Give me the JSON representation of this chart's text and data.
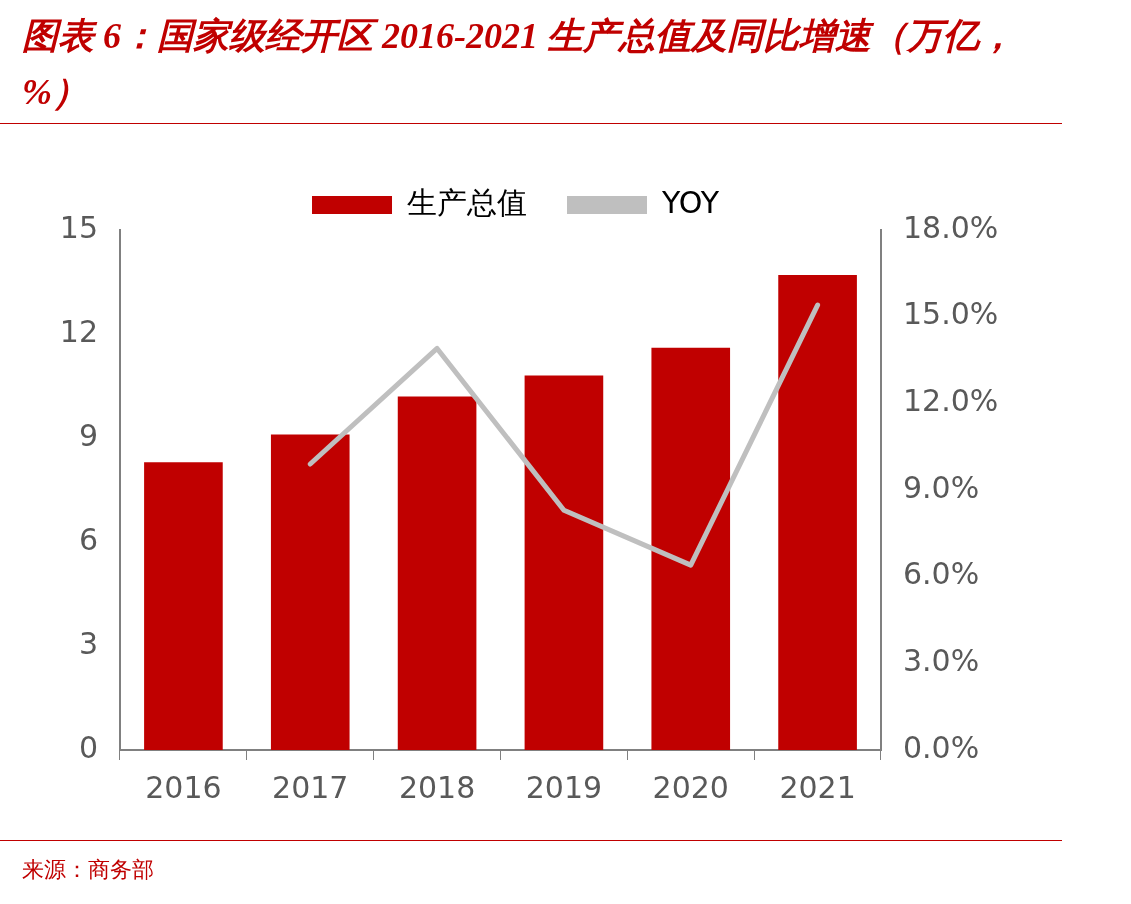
{
  "chart_data": {
    "type": "bar",
    "title": "图表 6：国家级经开区 2016-2021 生产总值及同比增速（万亿，%）",
    "categories": [
      "2016",
      "2017",
      "2018",
      "2019",
      "2020",
      "2021"
    ],
    "series": [
      {
        "name": "生产总值",
        "color": "#c00000",
        "values": [
          8.3,
          9.1,
          10.2,
          10.8,
          11.6,
          13.7
        ]
      },
      {
        "name": "YOY",
        "type": "line",
        "axis": "y2",
        "color": "#bfbfbf",
        "values": [
          null,
          9.9,
          13.9,
          8.3,
          6.4,
          15.4
        ]
      }
    ],
    "ylim": [
      0,
      15
    ],
    "yticks": [
      0,
      3,
      6,
      9,
      12,
      15
    ],
    "y2lim": [
      0,
      18
    ],
    "y2ticks": [
      {
        "value": 0,
        "label": "0.0%"
      },
      {
        "value": 3,
        "label": "3.0%"
      },
      {
        "value": 6,
        "label": "6.0%"
      },
      {
        "value": 9,
        "label": "9.0%"
      },
      {
        "value": 12,
        "label": "12.0%"
      },
      {
        "value": 15,
        "label": "15.0%"
      },
      {
        "value": 18,
        "label": "18.0%"
      }
    ],
    "grid": false,
    "legend": "top",
    "marker": "none",
    "annotations": [
      "来源：商务部"
    ]
  }
}
